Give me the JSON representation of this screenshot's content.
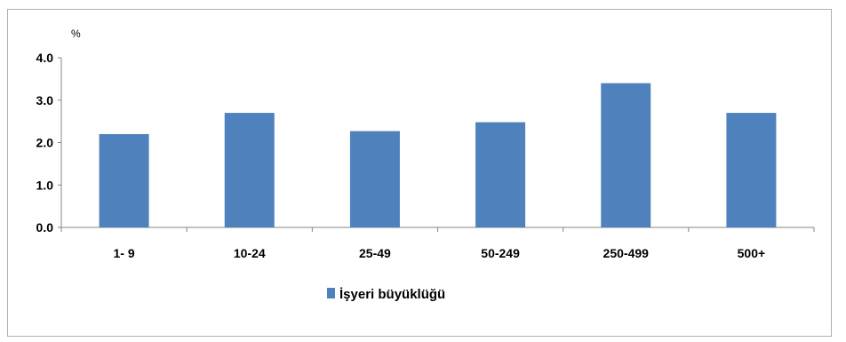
{
  "chart_data": {
    "type": "bar",
    "categories": [
      "1- 9",
      "10-24",
      "25-49",
      "50-249",
      "250-499",
      "500+"
    ],
    "series": [
      {
        "name": "İşyeri büyüklüğü",
        "values": [
          2.2,
          2.7,
          2.27,
          2.48,
          3.4,
          2.7
        ],
        "color": "#4f81bd"
      }
    ],
    "ylabel": "%",
    "ylim": [
      0,
      4
    ],
    "yticks": [
      "0.0",
      "1.0",
      "2.0",
      "3.0",
      "4.0"
    ],
    "grid": false,
    "legend": "bottom"
  }
}
